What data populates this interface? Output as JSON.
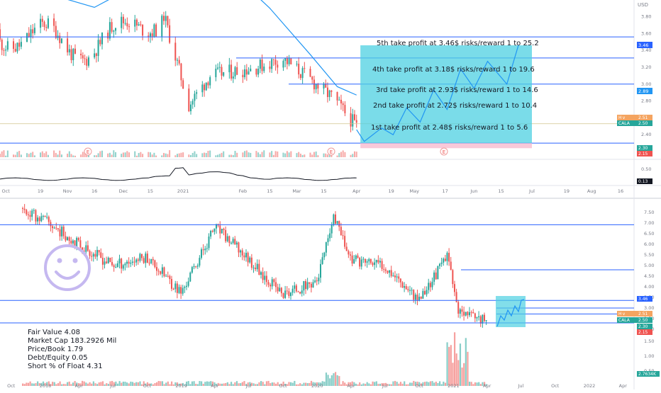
{
  "symbol": "CALA",
  "currency_label": "USD",
  "colors": {
    "up": "#26a69a",
    "down": "#ef5350",
    "level_line": "#2962ff",
    "ma_line": "#2196f3",
    "projection_box": "#4dd0e1",
    "stop_box": "#f8bbd0",
    "price_tag": "#26a69a",
    "smiley": "#c5b8f0"
  },
  "top_chart": {
    "price_axis": [
      "3.80",
      "3.60",
      "3.40",
      "3.20",
      "3.00",
      "2.80",
      "2.60",
      "2.40",
      "2.20"
    ],
    "osc_axis": [
      "0.50",
      "0.00"
    ],
    "time_axis": [
      "Oct",
      "19",
      "Nov",
      "16",
      "Dec",
      "15",
      "2021",
      "Feb",
      "15",
      "Mar",
      "15",
      "Apr",
      "19",
      "May",
      "17",
      "Jun",
      "15",
      "Jul",
      "19",
      "Aug",
      "16"
    ],
    "price_tags": {
      "top": "3.46",
      "ma": "2.89",
      "hv": "2.51",
      "cala": "CALA",
      "cala_price": "2.50",
      "low1": "2.30",
      "low2": "2.15",
      "osc": "0.13",
      "hv_label": "H v"
    },
    "take_profits": [
      "5th take profit at 3.46$ risks/reward 1 to 25.2",
      "4th take profit at 3.18$ risks/reward 1 to 19.6",
      "3rd take profit at 2.93$ risks/reward 1 to 14.6",
      "2nd take profit at 2.72$ risks/reward 1 to 10.4",
      "1st take profit at 2.48$ risks/reward 1 to 5.6"
    ],
    "earnings_marker": "E",
    "levels": [
      3.56,
      3.31,
      3.0,
      2.53,
      2.3
    ],
    "ma_points": [
      [
        "2020-09-28",
        4.6
      ],
      [
        "2020-10-26",
        4.05
      ],
      [
        "2020-11-16",
        3.91
      ],
      [
        "2020-11-30",
        4.08
      ],
      [
        "2020-12-21",
        4.7
      ],
      [
        "2021-01-18",
        4.5
      ],
      [
        "2021-02-15",
        3.9
      ],
      [
        "2021-03-08",
        3.35
      ],
      [
        "2021-03-22",
        2.97
      ],
      [
        "2021-04-01",
        2.87
      ]
    ],
    "projection_path": [
      [
        "2021-04-01",
        2.46
      ],
      [
        "2021-04-05",
        2.32
      ],
      [
        "2021-04-14",
        2.48
      ],
      [
        "2021-04-20",
        2.4
      ],
      [
        "2021-04-27",
        2.72
      ],
      [
        "2021-05-04",
        2.55
      ],
      [
        "2021-05-11",
        2.93
      ],
      [
        "2021-05-18",
        2.7
      ],
      [
        "2021-05-25",
        3.18
      ],
      [
        "2021-06-01",
        2.95
      ],
      [
        "2021-06-08",
        3.27
      ],
      [
        "2021-06-18",
        3.0
      ],
      [
        "2021-06-24",
        3.46
      ]
    ]
  },
  "bottom_chart": {
    "price_axis": [
      "7.50",
      "7.00",
      "6.50",
      "6.00",
      "5.50",
      "5.00",
      "4.50",
      "4.00",
      "3.50",
      "3.00",
      "2.50",
      "2.00"
    ],
    "volume_axis": [
      "1.50",
      "1.00",
      "0.50"
    ],
    "time_axis": [
      "Oct",
      "2018",
      "Apr",
      "Jul",
      "Oct",
      "2019",
      "Apr",
      "Jul",
      "Oct",
      "2020",
      "Apr",
      "Jul",
      "Oct",
      "2021",
      "Apr",
      "Jul",
      "Oct",
      "2022",
      "Apr"
    ],
    "price_tags": {
      "top": "3.46",
      "ma": "2.89",
      "hv": "2.51",
      "cala": "CALA",
      "cala_price": "2.50",
      "low1": "2.30",
      "low2": "2.15",
      "vol": "2.7634K"
    },
    "fundamentals": [
      "Fair Value 4.08",
      "Market Cap 183.2926 Mil",
      "Price/Book 1.79",
      "Debt/Equity 0.05",
      "Short % of Float 4.31"
    ],
    "levels": [
      6.92,
      3.36,
      2.3
    ],
    "short_levels": [
      4.8,
      3.0,
      2.72
    ]
  },
  "chart_data": [
    {
      "type": "candlestick",
      "title": "",
      "xlabel": "",
      "ylabel": "",
      "ylim": [
        2.15,
        3.95
      ],
      "x_range": [
        "2020-09-28",
        "2021-08-23"
      ],
      "series": [
        {
          "name": "CALA",
          "close_approx": [
            [
              "2020-10-05",
              3.62
            ],
            [
              "2020-11-02",
              3.45
            ],
            [
              "2020-12-01",
              3.55
            ],
            [
              "2020-12-21",
              3.9
            ],
            [
              "2021-01-04",
              2.75
            ],
            [
              "2021-01-15",
              3.1
            ],
            [
              "2021-02-08",
              3.2
            ],
            [
              "2021-02-22",
              3.3
            ],
            [
              "2021-03-08",
              3.05
            ],
            [
              "2021-03-19",
              2.85
            ],
            [
              "2021-04-01",
              2.5
            ]
          ]
        }
      ],
      "take_profits": [
        2.48,
        2.72,
        2.93,
        3.18,
        3.46
      ],
      "risk_reward": [
        5.6,
        10.4,
        14.6,
        19.6,
        25.2
      ],
      "stop_zone": [
        2.15,
        2.3
      ]
    },
    {
      "type": "candlestick",
      "title": "",
      "xlabel": "",
      "ylabel": "",
      "ylim": [
        1.8,
        7.8
      ],
      "x_range": [
        "2017-09-01",
        "2022-05-01"
      ],
      "series": [
        {
          "name": "CALA",
          "close_approx": [
            [
              "2017-11-01",
              7.6
            ],
            [
              "2018-01-01",
              7.1
            ],
            [
              "2018-04-01",
              6.0
            ],
            [
              "2018-07-01",
              5.0
            ],
            [
              "2018-10-01",
              5.4
            ],
            [
              "2019-01-01",
              3.7
            ],
            [
              "2019-04-01",
              6.8
            ],
            [
              "2019-07-01",
              5.3
            ],
            [
              "2019-10-01",
              3.6
            ],
            [
              "2020-01-01",
              4.3
            ],
            [
              "2020-02-15",
              7.2
            ],
            [
              "2020-04-01",
              5.3
            ],
            [
              "2020-07-01",
              5.0
            ],
            [
              "2020-10-01",
              3.4
            ],
            [
              "2020-12-15",
              5.4
            ],
            [
              "2021-01-15",
              2.7
            ],
            [
              "2021-04-01",
              2.5
            ]
          ]
        }
      ]
    }
  ]
}
